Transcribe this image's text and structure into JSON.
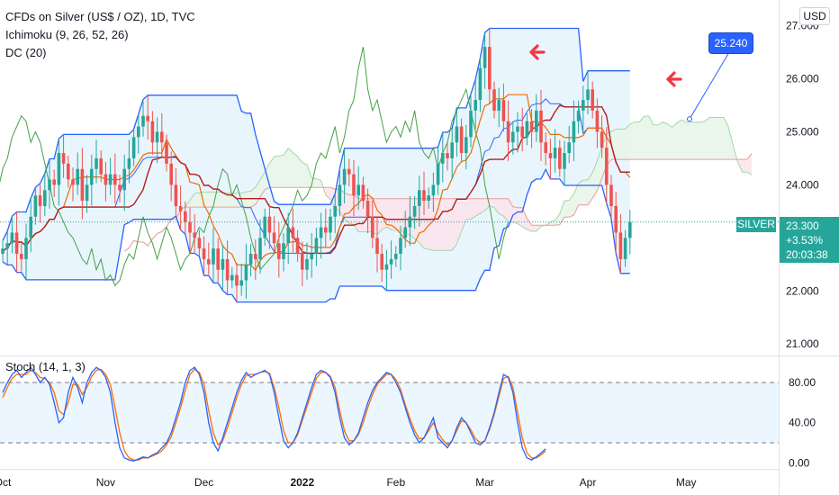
{
  "header": {
    "title": "CFDs on Silver (US$ / OZ), 1D, TVC",
    "indicator_1": "Ichimoku (9, 26, 52, 26)",
    "indicator_2": "DC (20)",
    "currency": "USD"
  },
  "price_tag": {
    "symbol": "SILVER",
    "price": "23.300",
    "change": "+3.53%",
    "countdown": "20:03:38"
  },
  "callout": {
    "label": "25.240"
  },
  "stoch_label": "Stoch (14, 1, 3)",
  "colors": {
    "donchian_line": "#2962ff",
    "donchian_fill": "#e3f2fd",
    "tenkan": "#ef6c00",
    "kijun": "#b71c1c",
    "chikou": "#43a047",
    "cloud_up": "#e8f5e9",
    "cloud_down": "#fce4ec",
    "candle_up": "#26a69a",
    "candle_down": "#ef5350",
    "stoch_k": "#2962ff",
    "stoch_d": "#ff6d00",
    "arrow": "#f23645"
  },
  "chart_data": [
    {
      "type": "candlestick",
      "panel": "price",
      "ylim": [
        20.8,
        27.4
      ],
      "y_ticks": [
        "27.000",
        "26.000",
        "25.000",
        "24.000",
        "22.000",
        "21.000"
      ],
      "y_tick_values": [
        27,
        26,
        25,
        24,
        22,
        21
      ],
      "x_ticks": [
        "Oct",
        "Nov",
        "Dec",
        "2022",
        "Feb",
        "Mar",
        "Apr",
        "May"
      ],
      "x_tick_bars": [
        0,
        22,
        43,
        64,
        84,
        103,
        125,
        146
      ],
      "close_series": [
        22.8,
        22.9,
        23.1,
        22.7,
        22.6,
        23.0,
        23.4,
        23.8,
        23.6,
        23.9,
        24.1,
        24.0,
        24.6,
        24.4,
        24.1,
        24.0,
        24.3,
        23.7,
        24.0,
        24.3,
        24.5,
        24.2,
        24.0,
        24.2,
        24.0,
        23.9,
        24.3,
        24.5,
        24.9,
        25.1,
        25.3,
        25.2,
        24.8,
        25.0,
        24.8,
        24.4,
        24.0,
        23.6,
        23.5,
        23.3,
        23.1,
        23.0,
        22.8,
        22.6,
        22.5,
        22.8,
        22.4,
        22.6,
        22.2,
        22.3,
        22.1,
        22.2,
        22.5,
        22.7,
        22.6,
        23.0,
        23.4,
        23.1,
        22.9,
        22.6,
        22.9,
        23.2,
        23.0,
        22.7,
        22.4,
        22.6,
        22.7,
        23.0,
        23.2,
        23.1,
        23.4,
        23.6,
        24.0,
        24.3,
        24.2,
        23.8,
        24.0,
        23.7,
        23.4,
        23.0,
        22.7,
        22.4,
        22.5,
        22.6,
        22.7,
        23.0,
        23.2,
        23.4,
        23.6,
        23.9,
        23.7,
        23.8,
        24.0,
        24.4,
        24.6,
        24.5,
        24.8,
        25.1,
        24.6,
        24.9,
        25.4,
        25.6,
        26.2,
        26.6,
        25.8,
        25.4,
        25.6,
        25.2,
        24.8,
        25.0,
        25.1,
        24.9,
        25.2,
        25.0,
        25.4,
        24.8,
        24.6,
        24.5,
        24.7,
        24.3,
        24.6,
        24.8,
        25.2,
        25.4,
        25.6,
        25.8,
        25.4,
        25.0,
        24.7,
        24.0,
        23.6,
        23.1,
        22.6,
        23.0,
        23.3
      ],
      "last_price": 23.3,
      "callout_value": 25.24
    },
    {
      "type": "line",
      "panel": "stochastic",
      "ylim": [
        -5,
        105
      ],
      "y_ticks": [
        "80.00",
        "40.00",
        "0.00"
      ],
      "y_tick_values": [
        80,
        40,
        0
      ],
      "band": [
        20,
        80
      ],
      "series": [
        {
          "name": "%K",
          "values": [
            70,
            80,
            88,
            92,
            85,
            90,
            95,
            88,
            80,
            85,
            78,
            60,
            40,
            45,
            70,
            85,
            75,
            60,
            80,
            90,
            95,
            92,
            85,
            70,
            40,
            15,
            5,
            3,
            2,
            4,
            6,
            5,
            8,
            10,
            15,
            20,
            30,
            45,
            60,
            80,
            92,
            95,
            88,
            70,
            40,
            20,
            12,
            25,
            40,
            55,
            70,
            82,
            90,
            85,
            88,
            90,
            92,
            88,
            70,
            45,
            22,
            15,
            20,
            30,
            45,
            60,
            75,
            88,
            92,
            90,
            85,
            70,
            45,
            25,
            18,
            22,
            30,
            45,
            60,
            72,
            80,
            85,
            90,
            88,
            80,
            70,
            55,
            40,
            28,
            20,
            25,
            35,
            45,
            25,
            20,
            15,
            22,
            35,
            45,
            40,
            30,
            20,
            18,
            22,
            35,
            50,
            70,
            88,
            85,
            70,
            40,
            15,
            5,
            3,
            6,
            10,
            14
          ]
        },
        {
          "name": "%D",
          "values": [
            65,
            75,
            84,
            88,
            88,
            88,
            92,
            90,
            85,
            84,
            80,
            70,
            52,
            48,
            60,
            78,
            78,
            68,
            75,
            86,
            92,
            93,
            88,
            78,
            55,
            30,
            12,
            5,
            3,
            3,
            5,
            5,
            7,
            9,
            12,
            18,
            26,
            40,
            55,
            72,
            88,
            93,
            90,
            78,
            52,
            30,
            18,
            22,
            35,
            50,
            65,
            78,
            87,
            88,
            88,
            90,
            91,
            89,
            75,
            55,
            32,
            20,
            20,
            28,
            42,
            56,
            70,
            84,
            90,
            90,
            86,
            75,
            52,
            32,
            22,
            22,
            28,
            40,
            55,
            68,
            78,
            83,
            88,
            88,
            83,
            73,
            58,
            44,
            32,
            24,
            25,
            32,
            40,
            30,
            23,
            18,
            22,
            32,
            42,
            40,
            33,
            24,
            20,
            22,
            33,
            48,
            66,
            84,
            86,
            75,
            50,
            25,
            10,
            5,
            5,
            8,
            12
          ]
        }
      ]
    }
  ]
}
